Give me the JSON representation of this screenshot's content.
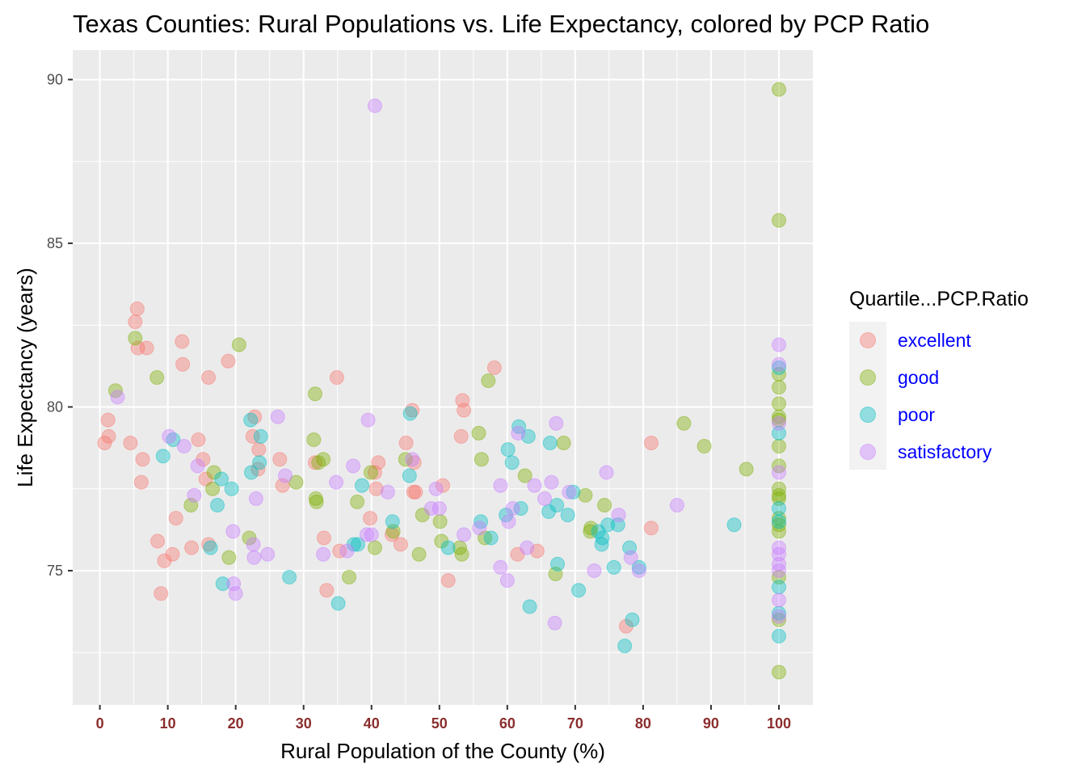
{
  "chart_data": {
    "type": "scatter",
    "title": "Texas Counties: Rural Populations vs. Life Expectancy, colored by PCP Ratio",
    "xlabel": "Rural Population of the County (%)",
    "ylabel": "Life Expectancy (years)",
    "xlim": [
      -4,
      105
    ],
    "ylim": [
      70.9,
      90.9
    ],
    "x_ticks": [
      0,
      10,
      20,
      30,
      40,
      50,
      60,
      70,
      80,
      90,
      100
    ],
    "x_tick_labels": [
      "0",
      "10",
      "20",
      "30",
      "40",
      "50",
      "60",
      "70",
      "80",
      "90",
      "100"
    ],
    "y_ticks": [
      75,
      80,
      85,
      90
    ],
    "y_tick_labels": [
      "75",
      "80",
      "85",
      "90"
    ],
    "grid": true,
    "background": "#ebebeb",
    "x_tick_color": "#8b2e2e",
    "legend": {
      "title": "Quartile...PCP.Ratio",
      "position": "right",
      "label_color": "#0000ff"
    },
    "series": [
      {
        "name": "excellent",
        "color": "#f8766d",
        "points": [
          [
            0.7,
            78.9
          ],
          [
            1.2,
            79.6
          ],
          [
            1.3,
            79.1
          ],
          [
            4.5,
            78.9
          ],
          [
            5.2,
            82.6
          ],
          [
            5.5,
            83.0
          ],
          [
            5.6,
            81.8
          ],
          [
            6.1,
            77.7
          ],
          [
            6.3,
            78.4
          ],
          [
            6.9,
            81.8
          ],
          [
            8.5,
            75.9
          ],
          [
            9.0,
            74.3
          ],
          [
            9.5,
            75.3
          ],
          [
            10.7,
            75.5
          ],
          [
            11.2,
            76.6
          ],
          [
            12.1,
            82.0
          ],
          [
            12.2,
            81.3
          ],
          [
            13.5,
            75.7
          ],
          [
            14.5,
            79.0
          ],
          [
            15.2,
            78.4
          ],
          [
            15.6,
            77.8
          ],
          [
            16.0,
            75.8
          ],
          [
            16.0,
            80.9
          ],
          [
            18.9,
            81.4
          ],
          [
            22.5,
            79.1
          ],
          [
            22.8,
            79.7
          ],
          [
            23.3,
            78.1
          ],
          [
            23.4,
            78.7
          ],
          [
            26.5,
            78.4
          ],
          [
            26.9,
            77.6
          ],
          [
            31.7,
            78.3
          ],
          [
            33.0,
            76.0
          ],
          [
            33.4,
            74.4
          ],
          [
            34.9,
            80.9
          ],
          [
            35.3,
            75.6
          ],
          [
            39.8,
            76.6
          ],
          [
            40.5,
            78.0
          ],
          [
            40.7,
            77.5
          ],
          [
            41.0,
            78.3
          ],
          [
            43.0,
            76.1
          ],
          [
            44.3,
            75.8
          ],
          [
            45.1,
            78.9
          ],
          [
            46.0,
            79.9
          ],
          [
            46.2,
            77.4
          ],
          [
            46.3,
            78.3
          ],
          [
            46.5,
            77.4
          ],
          [
            50.5,
            77.6
          ],
          [
            51.3,
            74.7
          ],
          [
            53.2,
            79.1
          ],
          [
            53.4,
            80.2
          ],
          [
            53.6,
            79.9
          ],
          [
            58.1,
            81.2
          ],
          [
            61.5,
            75.5
          ],
          [
            64.4,
            75.6
          ],
          [
            77.5,
            73.3
          ],
          [
            81.2,
            78.9
          ],
          [
            81.2,
            76.3
          ]
        ]
      },
      {
        "name": "good",
        "color": "#7cae00",
        "points": [
          [
            2.3,
            80.5
          ],
          [
            5.2,
            82.1
          ],
          [
            8.4,
            80.9
          ],
          [
            13.4,
            77.0
          ],
          [
            16.6,
            77.5
          ],
          [
            16.8,
            78.0
          ],
          [
            19.0,
            75.4
          ],
          [
            20.5,
            81.9
          ],
          [
            22.0,
            76.0
          ],
          [
            28.9,
            77.7
          ],
          [
            31.5,
            79.0
          ],
          [
            31.7,
            80.4
          ],
          [
            31.8,
            77.2
          ],
          [
            31.9,
            77.1
          ],
          [
            32.2,
            78.3
          ],
          [
            32.9,
            78.4
          ],
          [
            36.7,
            74.8
          ],
          [
            37.9,
            77.1
          ],
          [
            39.9,
            78.0
          ],
          [
            40.5,
            75.7
          ],
          [
            43.2,
            76.2
          ],
          [
            45.0,
            78.4
          ],
          [
            47.0,
            75.5
          ],
          [
            47.5,
            76.7
          ],
          [
            50.1,
            76.5
          ],
          [
            50.3,
            75.9
          ],
          [
            53.0,
            75.7
          ],
          [
            53.3,
            75.5
          ],
          [
            55.8,
            79.2
          ],
          [
            56.2,
            78.4
          ],
          [
            56.7,
            76.0
          ],
          [
            57.2,
            80.8
          ],
          [
            62.6,
            77.9
          ],
          [
            67.1,
            74.9
          ],
          [
            68.3,
            78.9
          ],
          [
            71.5,
            77.3
          ],
          [
            72.2,
            76.2
          ],
          [
            72.3,
            76.3
          ],
          [
            74.3,
            77.0
          ],
          [
            86.0,
            79.5
          ],
          [
            89.0,
            78.8
          ],
          [
            95.2,
            78.1
          ],
          [
            100,
            89.7
          ],
          [
            100,
            85.7
          ],
          [
            100,
            81.0
          ],
          [
            100,
            80.6
          ],
          [
            100,
            80.1
          ],
          [
            100,
            79.7
          ],
          [
            100,
            79.6
          ],
          [
            100,
            78.8
          ],
          [
            100,
            78.2
          ],
          [
            100,
            77.5
          ],
          [
            100,
            77.3
          ],
          [
            100,
            77.2
          ],
          [
            100,
            76.6
          ],
          [
            100,
            76.4
          ],
          [
            100,
            76.2
          ],
          [
            100,
            74.8
          ],
          [
            100,
            73.5
          ],
          [
            100,
            71.9
          ]
        ]
      },
      {
        "name": "poor",
        "color": "#00bfc4",
        "points": [
          [
            9.3,
            78.5
          ],
          [
            10.8,
            79.0
          ],
          [
            16.3,
            75.7
          ],
          [
            17.3,
            77.0
          ],
          [
            17.9,
            77.8
          ],
          [
            18.1,
            74.6
          ],
          [
            19.4,
            77.5
          ],
          [
            22.2,
            79.6
          ],
          [
            22.3,
            78.0
          ],
          [
            23.5,
            78.3
          ],
          [
            23.7,
            79.1
          ],
          [
            27.9,
            74.8
          ],
          [
            35.1,
            74.0
          ],
          [
            37.4,
            75.8
          ],
          [
            38.0,
            75.8
          ],
          [
            38.6,
            77.6
          ],
          [
            43.1,
            76.5
          ],
          [
            45.6,
            77.9
          ],
          [
            45.7,
            79.8
          ],
          [
            51.3,
            75.7
          ],
          [
            56.1,
            76.5
          ],
          [
            57.6,
            76.0
          ],
          [
            59.8,
            76.7
          ],
          [
            60.1,
            78.7
          ],
          [
            60.7,
            78.3
          ],
          [
            61.7,
            79.4
          ],
          [
            62.0,
            76.9
          ],
          [
            63.1,
            79.1
          ],
          [
            63.3,
            73.9
          ],
          [
            66.1,
            76.8
          ],
          [
            66.3,
            78.9
          ],
          [
            67.3,
            77.0
          ],
          [
            67.4,
            75.2
          ],
          [
            68.9,
            76.7
          ],
          [
            69.7,
            77.4
          ],
          [
            70.5,
            74.4
          ],
          [
            73.4,
            76.2
          ],
          [
            73.9,
            75.8
          ],
          [
            74.0,
            76.0
          ],
          [
            74.8,
            76.4
          ],
          [
            75.7,
            75.1
          ],
          [
            76.3,
            76.4
          ],
          [
            77.3,
            72.7
          ],
          [
            78.0,
            75.7
          ],
          [
            78.4,
            73.5
          ],
          [
            79.4,
            75.1
          ],
          [
            93.4,
            76.4
          ],
          [
            100,
            81.2
          ],
          [
            100,
            79.2
          ],
          [
            100,
            76.9
          ],
          [
            100,
            76.5
          ],
          [
            100,
            74.5
          ],
          [
            100,
            73.7
          ],
          [
            100,
            73.0
          ]
        ]
      },
      {
        "name": "satisfactory",
        "color": "#c77cff",
        "points": [
          [
            2.6,
            80.3
          ],
          [
            10.2,
            79.1
          ],
          [
            12.4,
            78.8
          ],
          [
            13.9,
            77.3
          ],
          [
            14.4,
            78.2
          ],
          [
            19.6,
            76.2
          ],
          [
            19.7,
            74.6
          ],
          [
            20.0,
            74.3
          ],
          [
            22.6,
            75.8
          ],
          [
            22.7,
            75.4
          ],
          [
            23.0,
            77.2
          ],
          [
            24.7,
            75.5
          ],
          [
            26.2,
            79.7
          ],
          [
            27.3,
            77.9
          ],
          [
            32.9,
            75.5
          ],
          [
            34.8,
            77.7
          ],
          [
            36.4,
            75.6
          ],
          [
            37.3,
            78.2
          ],
          [
            39.3,
            76.1
          ],
          [
            39.5,
            79.6
          ],
          [
            40.0,
            76.1
          ],
          [
            40.5,
            89.2
          ],
          [
            42.4,
            77.4
          ],
          [
            46.0,
            78.4
          ],
          [
            48.8,
            76.9
          ],
          [
            49.5,
            77.5
          ],
          [
            50.0,
            76.9
          ],
          [
            53.6,
            76.1
          ],
          [
            55.9,
            76.3
          ],
          [
            59.0,
            77.6
          ],
          [
            59.0,
            75.1
          ],
          [
            60.0,
            74.7
          ],
          [
            60.2,
            76.5
          ],
          [
            60.8,
            76.9
          ],
          [
            61.6,
            79.2
          ],
          [
            62.9,
            75.7
          ],
          [
            64.0,
            77.6
          ],
          [
            65.5,
            77.2
          ],
          [
            66.5,
            77.7
          ],
          [
            67.0,
            73.4
          ],
          [
            67.2,
            79.5
          ],
          [
            69.1,
            77.4
          ],
          [
            72.8,
            75.0
          ],
          [
            74.6,
            78.0
          ],
          [
            76.4,
            76.7
          ],
          [
            78.2,
            75.4
          ],
          [
            79.4,
            75.0
          ],
          [
            85.0,
            77.0
          ],
          [
            100,
            81.9
          ],
          [
            100,
            81.3
          ],
          [
            100,
            79.5
          ],
          [
            100,
            78.0
          ],
          [
            100,
            75.7
          ],
          [
            100,
            75.5
          ],
          [
            100,
            75.2
          ],
          [
            100,
            75.0
          ],
          [
            100,
            74.1
          ],
          [
            100,
            73.6
          ]
        ]
      }
    ]
  }
}
